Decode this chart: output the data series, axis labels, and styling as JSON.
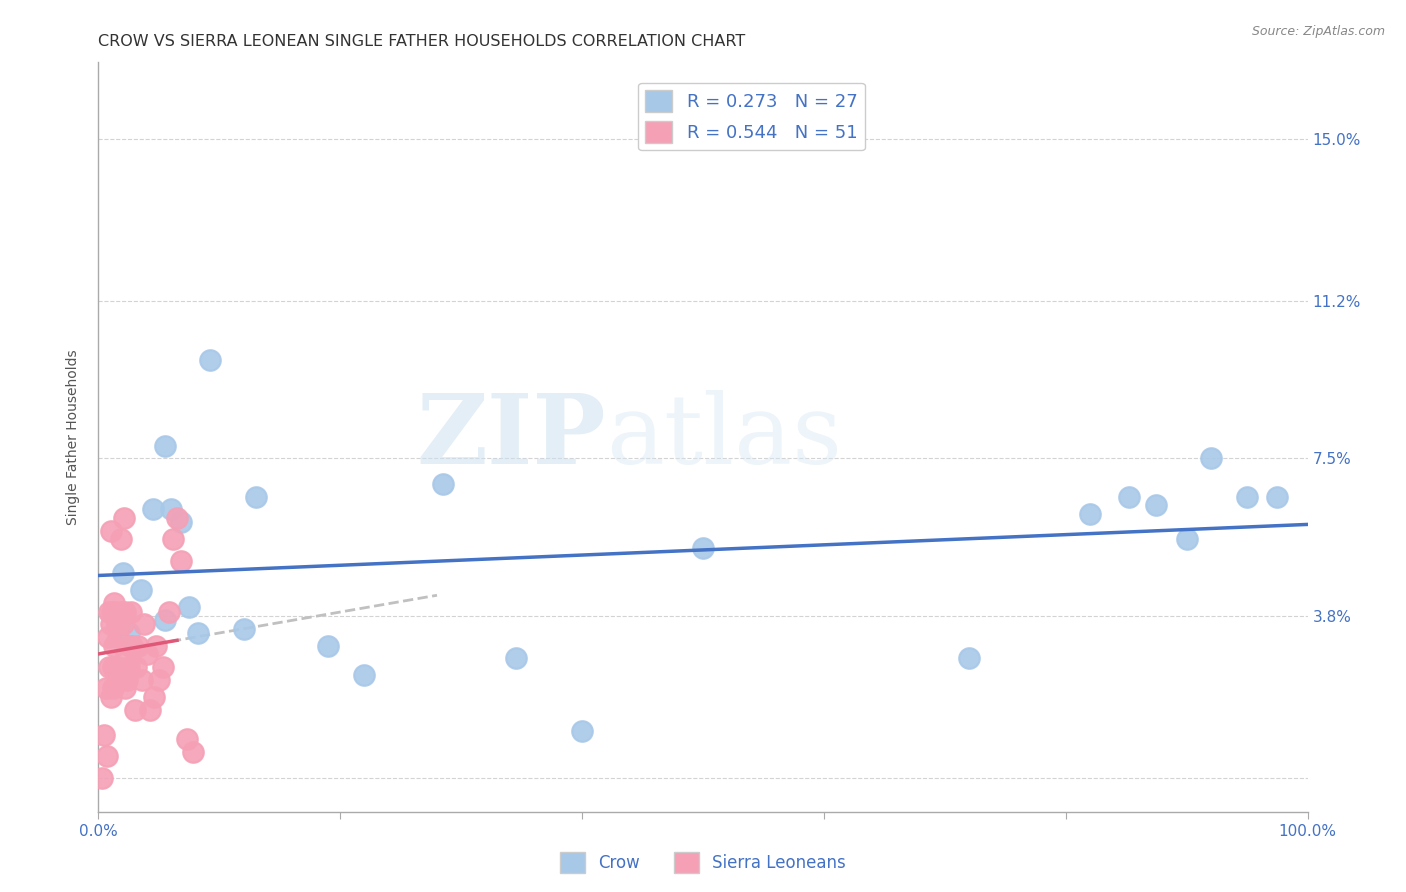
{
  "title": "CROW VS SIERRA LEONEAN SINGLE FATHER HOUSEHOLDS CORRELATION CHART",
  "source": "Source: ZipAtlas.com",
  "ylabel": "Single Father Households",
  "xlim": [
    0.0,
    1.0
  ],
  "ylim": [
    -0.008,
    0.168
  ],
  "yticks": [
    0.0,
    0.038,
    0.075,
    0.112,
    0.15
  ],
  "ytick_labels": [
    "",
    "3.8%",
    "7.5%",
    "11.2%",
    "15.0%"
  ],
  "xticks": [
    0.0,
    0.2,
    0.4,
    0.6,
    0.8,
    1.0
  ],
  "xtick_labels": [
    "0.0%",
    "",
    "",
    "",
    "",
    "100.0%"
  ],
  "crow_color": "#a8c8e8",
  "sierra_color": "#f5a0b5",
  "crow_line_color": "#4472c4",
  "sierra_line_color": "#e05878",
  "crow_R": 0.273,
  "crow_N": 27,
  "sierra_R": 0.544,
  "sierra_N": 51,
  "background_color": "#ffffff",
  "grid_color": "#c8c8c8",
  "crow_scatter_x": [
    0.02,
    0.025,
    0.035,
    0.045,
    0.055,
    0.06,
    0.068,
    0.075,
    0.082,
    0.092,
    0.055,
    0.12,
    0.13,
    0.19,
    0.22,
    0.285,
    0.345,
    0.4,
    0.5,
    0.72,
    0.82,
    0.852,
    0.875,
    0.9,
    0.92,
    0.95,
    0.975
  ],
  "crow_scatter_y": [
    0.048,
    0.034,
    0.044,
    0.063,
    0.037,
    0.063,
    0.06,
    0.04,
    0.034,
    0.098,
    0.078,
    0.035,
    0.066,
    0.031,
    0.024,
    0.069,
    0.028,
    0.011,
    0.054,
    0.028,
    0.062,
    0.066,
    0.064,
    0.056,
    0.075,
    0.066,
    0.066
  ],
  "sierra_scatter_x": [
    0.003,
    0.005,
    0.006,
    0.007,
    0.008,
    0.009,
    0.009,
    0.01,
    0.01,
    0.011,
    0.012,
    0.012,
    0.013,
    0.013,
    0.014,
    0.015,
    0.015,
    0.016,
    0.016,
    0.017,
    0.018,
    0.019,
    0.019,
    0.02,
    0.021,
    0.022,
    0.022,
    0.023,
    0.024,
    0.025,
    0.026,
    0.027,
    0.028,
    0.03,
    0.031,
    0.033,
    0.036,
    0.038,
    0.04,
    0.043,
    0.046,
    0.048,
    0.05,
    0.053,
    0.058,
    0.062,
    0.065,
    0.068,
    0.073,
    0.078,
    0.01
  ],
  "sierra_scatter_y": [
    0.0,
    0.01,
    0.021,
    0.005,
    0.033,
    0.039,
    0.026,
    0.019,
    0.036,
    0.039,
    0.026,
    0.021,
    0.041,
    0.031,
    0.039,
    0.036,
    0.026,
    0.033,
    0.023,
    0.036,
    0.023,
    0.039,
    0.056,
    0.036,
    0.061,
    0.021,
    0.039,
    0.029,
    0.023,
    0.026,
    0.031,
    0.039,
    0.031,
    0.016,
    0.026,
    0.031,
    0.023,
    0.036,
    0.029,
    0.016,
    0.019,
    0.031,
    0.023,
    0.026,
    0.039,
    0.056,
    0.061,
    0.051,
    0.009,
    0.006,
    0.058
  ],
  "watermark_zip": "ZIP",
  "watermark_atlas": "atlas",
  "title_fontsize": 11.5,
  "axis_label_fontsize": 10,
  "tick_fontsize": 11,
  "legend_fontsize": 13
}
